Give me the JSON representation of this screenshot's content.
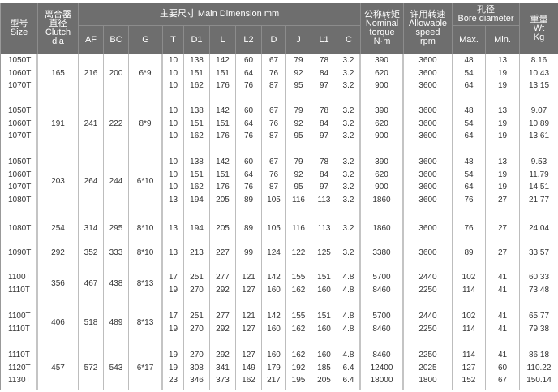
{
  "header": {
    "size": {
      "zh": "型号",
      "en": "Size"
    },
    "clutch": {
      "zh1": "离合器",
      "zh2": "直径",
      "en1": "Clutch",
      "en2": "dia"
    },
    "main_dimension": "主要尺寸  Main Dimension mm",
    "dims": [
      "AF",
      "BC",
      "G",
      "T",
      "D1",
      "L",
      "L2",
      "D",
      "J",
      "L1",
      "C"
    ],
    "torque": {
      "zh": "公称转矩",
      "en1": "Nominal",
      "en2": "torque",
      "unit": "N·m"
    },
    "speed": {
      "zh": "许用转速",
      "en1": "Allowable",
      "en2": "speed",
      "unit": "rpm"
    },
    "bore": {
      "zh": "孔径",
      "en": "Bore diameter",
      "max": "Max.",
      "min": "Min."
    },
    "weight": {
      "zh": "重量",
      "en1": "Wt",
      "en2": "Kg"
    }
  },
  "groups": [
    {
      "clutch": "165",
      "af": "216",
      "bc": "200",
      "g": "6*9",
      "rows": [
        {
          "size": "1050T",
          "T": "10",
          "D1": "138",
          "L": "142",
          "L2": "60",
          "D": "67",
          "J": "79",
          "L1": "78",
          "C": "3.2",
          "torque": "390",
          "speed": "3600",
          "max": "48",
          "min": "13",
          "wt": "8.16"
        },
        {
          "size": "1060T",
          "T": "10",
          "D1": "151",
          "L": "151",
          "L2": "64",
          "D": "76",
          "J": "92",
          "L1": "84",
          "C": "3.2",
          "torque": "620",
          "speed": "3600",
          "max": "54",
          "min": "19",
          "wt": "10.43"
        },
        {
          "size": "1070T",
          "T": "10",
          "D1": "162",
          "L": "176",
          "L2": "76",
          "D": "87",
          "J": "95",
          "L1": "97",
          "C": "3.2",
          "torque": "900",
          "speed": "3600",
          "max": "64",
          "min": "19",
          "wt": "13.15"
        }
      ]
    },
    {
      "clutch": "191",
      "af": "241",
      "bc": "222",
      "g": "8*9",
      "rows": [
        {
          "size": "1050T",
          "T": "10",
          "D1": "138",
          "L": "142",
          "L2": "60",
          "D": "67",
          "J": "79",
          "L1": "78",
          "C": "3.2",
          "torque": "390",
          "speed": "3600",
          "max": "48",
          "min": "13",
          "wt": "9.07"
        },
        {
          "size": "1060T",
          "T": "10",
          "D1": "151",
          "L": "151",
          "L2": "64",
          "D": "76",
          "J": "92",
          "L1": "84",
          "C": "3.2",
          "torque": "620",
          "speed": "3600",
          "max": "54",
          "min": "19",
          "wt": "10.89"
        },
        {
          "size": "1070T",
          "T": "10",
          "D1": "162",
          "L": "176",
          "L2": "76",
          "D": "87",
          "J": "95",
          "L1": "97",
          "C": "3.2",
          "torque": "900",
          "speed": "3600",
          "max": "64",
          "min": "19",
          "wt": "13.61"
        }
      ]
    },
    {
      "clutch": "203",
      "af": "264",
      "bc": "244",
      "g": "6*10",
      "rows": [
        {
          "size": "1050T",
          "T": "10",
          "D1": "138",
          "L": "142",
          "L2": "60",
          "D": "67",
          "J": "79",
          "L1": "78",
          "C": "3.2",
          "torque": "390",
          "speed": "3600",
          "max": "48",
          "min": "13",
          "wt": "9.53"
        },
        {
          "size": "1060T",
          "T": "10",
          "D1": "151",
          "L": "151",
          "L2": "64",
          "D": "76",
          "J": "92",
          "L1": "84",
          "C": "3.2",
          "torque": "620",
          "speed": "3600",
          "max": "54",
          "min": "19",
          "wt": "11.79"
        },
        {
          "size": "1070T",
          "T": "10",
          "D1": "162",
          "L": "176",
          "L2": "76",
          "D": "87",
          "J": "95",
          "L1": "97",
          "C": "3.2",
          "torque": "900",
          "speed": "3600",
          "max": "64",
          "min": "19",
          "wt": "14.51"
        },
        {
          "size": "1080T",
          "T": "13",
          "D1": "194",
          "L": "205",
          "L2": "89",
          "D": "105",
          "J": "116",
          "L1": "113",
          "C": "3.2",
          "torque": "1860",
          "speed": "3600",
          "max": "76",
          "min": "27",
          "wt": "21.77"
        }
      ]
    },
    {
      "clutch": "254",
      "af": "314",
      "bc": "295",
      "g": "8*10",
      "rows": [
        {
          "size": "1080T",
          "T": "13",
          "D1": "194",
          "L": "205",
          "L2": "89",
          "D": "105",
          "J": "116",
          "L1": "113",
          "C": "3.2",
          "torque": "1860",
          "speed": "3600",
          "max": "76",
          "min": "27",
          "wt": "24.04"
        }
      ]
    },
    {
      "clutch": "292",
      "af": "352",
      "bc": "333",
      "g": "8*10",
      "rows": [
        {
          "size": "1090T",
          "T": "13",
          "D1": "213",
          "L": "227",
          "L2": "99",
          "D": "124",
          "J": "122",
          "L1": "125",
          "C": "3.2",
          "torque": "3380",
          "speed": "3600",
          "max": "89",
          "min": "27",
          "wt": "33.57"
        }
      ]
    },
    {
      "clutch": "356",
      "af": "467",
      "bc": "438",
      "g": "8*13",
      "rows": [
        {
          "size": "1100T",
          "T": "17",
          "D1": "251",
          "L": "277",
          "L2": "121",
          "D": "142",
          "J": "155",
          "L1": "151",
          "C": "4.8",
          "torque": "5700",
          "speed": "2440",
          "max": "102",
          "min": "41",
          "wt": "60.33"
        },
        {
          "size": "1110T",
          "T": "19",
          "D1": "270",
          "L": "292",
          "L2": "127",
          "D": "160",
          "J": "162",
          "L1": "160",
          "C": "4.8",
          "torque": "8460",
          "speed": "2250",
          "max": "114",
          "min": "41",
          "wt": "73.48"
        }
      ]
    },
    {
      "clutch": "406",
      "af": "518",
      "bc": "489",
      "g": "8*13",
      "rows": [
        {
          "size": "1100T",
          "T": "17",
          "D1": "251",
          "L": "277",
          "L2": "121",
          "D": "142",
          "J": "155",
          "L1": "151",
          "C": "4.8",
          "torque": "5700",
          "speed": "2440",
          "max": "102",
          "min": "41",
          "wt": "65.77"
        },
        {
          "size": "1110T",
          "T": "19",
          "D1": "270",
          "L": "292",
          "L2": "127",
          "D": "160",
          "J": "162",
          "L1": "160",
          "C": "4.8",
          "torque": "8460",
          "speed": "2250",
          "max": "114",
          "min": "41",
          "wt": "79.38"
        }
      ]
    },
    {
      "clutch": "457",
      "af": "572",
      "bc": "543",
      "g": "6*17",
      "rows": [
        {
          "size": "1110T",
          "T": "19",
          "D1": "270",
          "L": "292",
          "L2": "127",
          "D": "160",
          "J": "162",
          "L1": "160",
          "C": "4.8",
          "torque": "8460",
          "speed": "2250",
          "max": "114",
          "min": "41",
          "wt": "86.18"
        },
        {
          "size": "1120T",
          "T": "19",
          "D1": "308",
          "L": "341",
          "L2": "149",
          "D": "179",
          "J": "192",
          "L1": "185",
          "C": "6.4",
          "torque": "12400",
          "speed": "2025",
          "max": "127",
          "min": "60",
          "wt": "110.22"
        },
        {
          "size": "1130T",
          "T": "23",
          "D1": "346",
          "L": "373",
          "L2": "162",
          "D": "217",
          "J": "195",
          "L1": "205",
          "C": "6.4",
          "torque": "18000",
          "speed": "1800",
          "max": "152",
          "min": "67",
          "wt": "150.14"
        }
      ]
    }
  ]
}
